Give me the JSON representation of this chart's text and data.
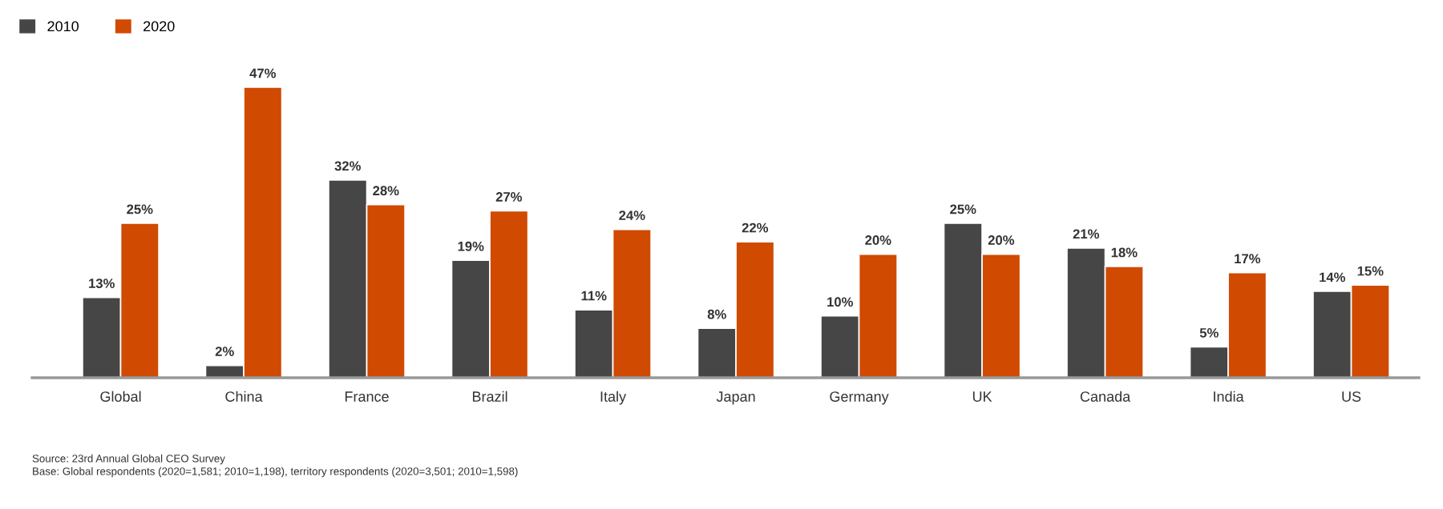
{
  "chart_data": {
    "type": "bar",
    "categories": [
      "Global",
      "China",
      "France",
      "Brazil",
      "Italy",
      "Japan",
      "Germany",
      "UK",
      "Canada",
      "India",
      "US"
    ],
    "series": [
      {
        "name": "2010",
        "color": "#464646",
        "values": [
          13,
          2,
          32,
          19,
          11,
          8,
          10,
          25,
          21,
          5,
          14
        ],
        "value_labels": [
          "13%",
          "2%",
          "32%",
          "19%",
          "11%",
          "8%",
          "10%",
          "25%",
          "21%",
          "5%",
          "14%"
        ]
      },
      {
        "name": "2020",
        "color": "#d04a02",
        "values": [
          25,
          47,
          28,
          27,
          24,
          22,
          20,
          20,
          18,
          17,
          15
        ],
        "value_labels": [
          "25%",
          "47%",
          "28%",
          "27%",
          "24%",
          "22%",
          "20%",
          "20%",
          "18%",
          "17%",
          "15%"
        ]
      }
    ],
    "legend": "top left",
    "grid": false,
    "annotations": [
      "Source: 23rd Annual Global CEO Survey",
      "Base: Global respondents (2020=1,581; 2010=1,198), territory respondents (2020=3,501; 2010=1,598)"
    ]
  }
}
